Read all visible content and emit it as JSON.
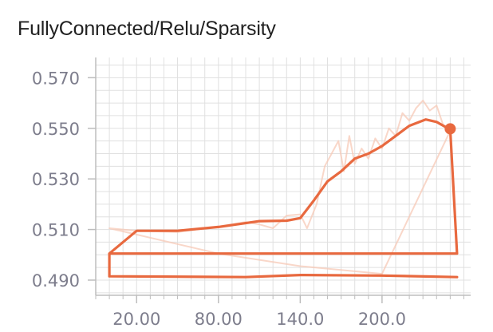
{
  "chart_data": {
    "type": "line",
    "title": "FullyConnected/Relu/Sparsity",
    "xlabel": "",
    "ylabel": "",
    "xlim": [
      -10,
      265
    ],
    "ylim": [
      0.484,
      0.578
    ],
    "x_ticks": [
      20,
      80,
      140,
      200
    ],
    "x_tick_labels": [
      "20.00",
      "80.00",
      "140.0",
      "200.0"
    ],
    "y_ticks": [
      0.49,
      0.51,
      0.53,
      0.55,
      0.57
    ],
    "y_tick_labels": [
      "0.490",
      "0.510",
      "0.530",
      "0.550",
      "0.570"
    ],
    "grid": true,
    "legend": "none",
    "colors": {
      "smoothed": "#e8693f",
      "raw": "#f7c9b7",
      "grid": "#e0e0e0",
      "axis": "#bdbdbd"
    },
    "series": [
      {
        "role": "smoothed",
        "points": [
          [
            0,
            0.5005
          ],
          [
            20,
            0.5095
          ],
          [
            50,
            0.5095
          ],
          [
            80,
            0.511
          ],
          [
            100,
            0.5125
          ],
          [
            110,
            0.5133
          ],
          [
            130,
            0.5135
          ],
          [
            140,
            0.5145
          ],
          [
            150,
            0.5215
          ],
          [
            160,
            0.529
          ],
          [
            170,
            0.533
          ],
          [
            180,
            0.538
          ],
          [
            190,
            0.54
          ],
          [
            200,
            0.543
          ],
          [
            210,
            0.547
          ],
          [
            220,
            0.551
          ],
          [
            232,
            0.5535
          ],
          [
            240,
            0.5525
          ],
          [
            250,
            0.5495
          ],
          [
            255,
            0.5005
          ],
          [
            0,
            0.5005
          ],
          [
            0,
            0.4915
          ],
          [
            100,
            0.4912
          ],
          [
            140,
            0.492
          ],
          [
            200,
            0.4918
          ],
          [
            255,
            0.4912
          ]
        ]
      },
      {
        "role": "raw",
        "points": [
          [
            0,
            0.5105
          ],
          [
            20,
            0.5095
          ],
          [
            50,
            0.509
          ],
          [
            80,
            0.5112
          ],
          [
            100,
            0.513
          ],
          [
            110,
            0.512
          ],
          [
            120,
            0.5105
          ],
          [
            130,
            0.5155
          ],
          [
            140,
            0.516
          ],
          [
            145,
            0.5105
          ],
          [
            152,
            0.52
          ],
          [
            158,
            0.535
          ],
          [
            163,
            0.54
          ],
          [
            168,
            0.545
          ],
          [
            172,
            0.533
          ],
          [
            176,
            0.547
          ],
          [
            180,
            0.536
          ],
          [
            185,
            0.542
          ],
          [
            190,
            0.538
          ],
          [
            195,
            0.546
          ],
          [
            200,
            0.542
          ],
          [
            205,
            0.55
          ],
          [
            210,
            0.547
          ],
          [
            215,
            0.556
          ],
          [
            220,
            0.553
          ],
          [
            225,
            0.558
          ],
          [
            230,
            0.561
          ],
          [
            235,
            0.557
          ],
          [
            240,
            0.559
          ],
          [
            245,
            0.551
          ],
          [
            250,
            0.549
          ],
          [
            200,
            0.4925
          ],
          [
            140,
            0.4955
          ],
          [
            80,
            0.5005
          ],
          [
            0,
            0.5105
          ]
        ]
      }
    ],
    "last_point": {
      "x": 250,
      "y": 0.5498
    }
  }
}
